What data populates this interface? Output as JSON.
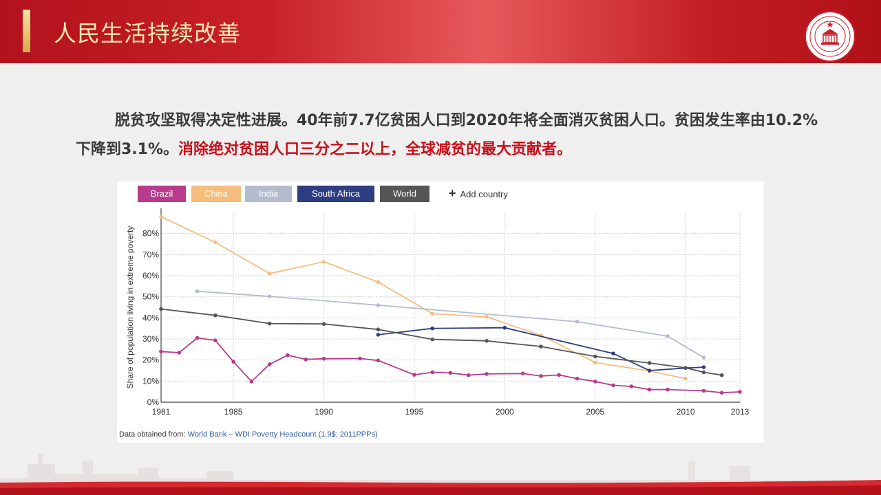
{
  "header": {
    "title": "人民生活持续改善",
    "emblem_text": "国家行政学院 CHINESE ACADEMY OF GOVERNANCE"
  },
  "paragraph": {
    "part1": "脱贫攻坚取得决定性进展。40年前7.7亿贫困人口到2020年将全面消灭贫困人口。贫困发生率由10.2%下降到3.1%。",
    "highlight": "消除绝对贫困人口三分之二以上，全球减贫的最大贡献者。"
  },
  "legend": {
    "brazil": "Brazil",
    "china": "China",
    "india": "India",
    "south_africa": "South Africa",
    "world": "World",
    "add_country": "Add country"
  },
  "source": {
    "prefix": "Data obtained from: ",
    "link": "World Bank – WDI Poverty Headcount (1.9$; 2011PPPs)"
  },
  "colors": {
    "brazil": "#b83b8d",
    "china": "#f5bd7e",
    "india": "#b3bccf",
    "south_africa": "#2c3d80",
    "world": "#555555",
    "highlight": "#c8101a"
  },
  "chart_data": {
    "type": "line",
    "ylabel": "Share of population living in extreme poverty",
    "xlim": [
      1981,
      2013
    ],
    "ylim": [
      0,
      90
    ],
    "x_ticks": [
      1981,
      1985,
      1990,
      1995,
      2000,
      2005,
      2010,
      2013
    ],
    "y_ticks": [
      0,
      10,
      20,
      30,
      40,
      50,
      60,
      70,
      80
    ],
    "y_tick_labels": [
      "0%",
      "10%",
      "20%",
      "30%",
      "40%",
      "50%",
      "60%",
      "70%",
      "80%"
    ],
    "grid": true,
    "series": [
      {
        "name": "Brazil",
        "key": "brazil",
        "points": [
          [
            1981,
            24
          ],
          [
            1982,
            23.5
          ],
          [
            1983,
            30.5
          ],
          [
            1984,
            29.3
          ],
          [
            1985,
            19.2
          ],
          [
            1986,
            9.8
          ],
          [
            1987,
            18
          ],
          [
            1988,
            22.3
          ],
          [
            1989,
            20.3
          ],
          [
            1990,
            20.6
          ],
          [
            1992,
            20.7
          ],
          [
            1993,
            19.8
          ],
          [
            1995,
            13
          ],
          [
            1996,
            14.2
          ],
          [
            1997,
            13.9
          ],
          [
            1998,
            12.8
          ],
          [
            1999,
            13.4
          ],
          [
            2001,
            13.6
          ],
          [
            2002,
            12.4
          ],
          [
            2003,
            12.9
          ],
          [
            2004,
            11.2
          ],
          [
            2005,
            9.8
          ],
          [
            2006,
            8
          ],
          [
            2007,
            7.5
          ],
          [
            2008,
            6
          ],
          [
            2009,
            6
          ],
          [
            2011,
            5.4
          ],
          [
            2012,
            4.5
          ],
          [
            2013,
            4.9
          ]
        ]
      },
      {
        "name": "China",
        "key": "china",
        "points": [
          [
            1981,
            88
          ],
          [
            1984,
            75.8
          ],
          [
            1987,
            61
          ],
          [
            1990,
            66.6
          ],
          [
            1993,
            57
          ],
          [
            1996,
            42
          ],
          [
            1999,
            40.5
          ],
          [
            2002,
            31.7
          ],
          [
            2005,
            18.8
          ],
          [
            2008,
            14.8
          ],
          [
            2010,
            11.2
          ]
        ]
      },
      {
        "name": "India",
        "key": "india",
        "points": [
          [
            1983,
            52.6
          ],
          [
            1987,
            50.2
          ],
          [
            1993,
            46
          ],
          [
            2004,
            38.2
          ],
          [
            2009,
            31.3
          ],
          [
            2011,
            21.2
          ]
        ]
      },
      {
        "name": "South Africa",
        "key": "south_africa",
        "points": [
          [
            1993,
            32
          ],
          [
            1996,
            35
          ],
          [
            2000,
            35.3
          ],
          [
            2006,
            23.1
          ],
          [
            2008,
            15
          ],
          [
            2010,
            16.2
          ],
          [
            2011,
            16.6
          ]
        ]
      },
      {
        "name": "World",
        "key": "world",
        "points": [
          [
            1981,
            44.2
          ],
          [
            1984,
            41.2
          ],
          [
            1987,
            37.3
          ],
          [
            1990,
            37.1
          ],
          [
            1993,
            34.5
          ],
          [
            1996,
            29.8
          ],
          [
            1999,
            29.1
          ],
          [
            2002,
            26.4
          ],
          [
            2005,
            21.7
          ],
          [
            2008,
            18.6
          ],
          [
            2010,
            16.3
          ],
          [
            2011,
            14.2
          ],
          [
            2012,
            12.8
          ]
        ]
      }
    ]
  }
}
